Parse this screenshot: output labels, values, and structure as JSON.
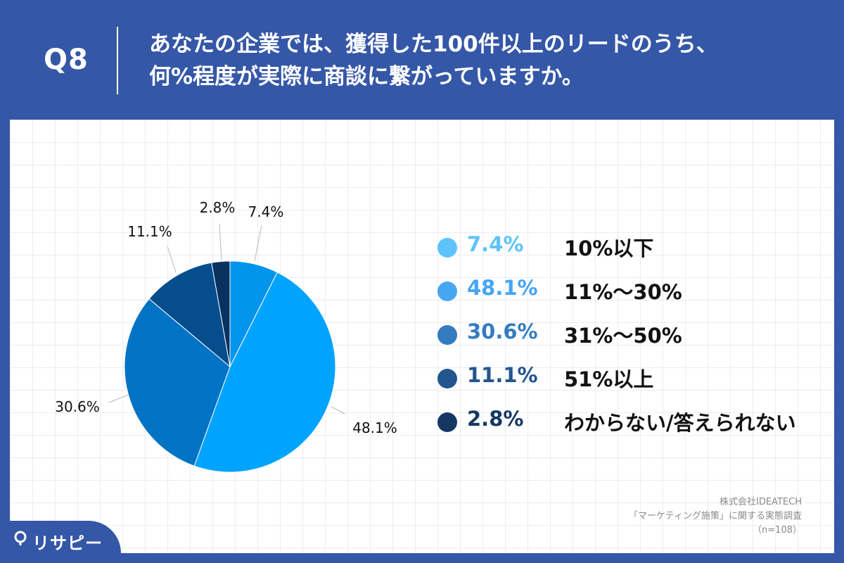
{
  "header": {
    "question_number": "Q8",
    "question_line1": "あなたの企業では、獲得した100件以上のリードのうち、",
    "question_line2": "何%程度が実際に商談に繋がっていますか。"
  },
  "chart_data": {
    "type": "pie",
    "title": "",
    "slices": [
      {
        "label": "10%以下",
        "value": 7.4,
        "value_text": "7.4%",
        "color": "#0094ec"
      },
      {
        "label": "11%〜30%",
        "value": 48.1,
        "value_text": "48.1%",
        "color": "#00a4ff"
      },
      {
        "label": "31%〜50%",
        "value": 30.6,
        "value_text": "30.6%",
        "color": "#0073c4"
      },
      {
        "label": "51%以上",
        "value": 11.1,
        "value_text": "11.1%",
        "color": "#054d8d"
      },
      {
        "label": "わからない/答えられない",
        "value": 2.8,
        "value_text": "2.8%",
        "color": "#08325f"
      }
    ],
    "legend_placement": "right"
  },
  "legend": {
    "items": [
      {
        "value": "7.4%",
        "label": "10%以下",
        "dot_color": "#5ec3fb",
        "text_color": "#5ec3fb"
      },
      {
        "value": "48.1%",
        "label": "11%〜30%",
        "dot_color": "#45a6f2",
        "text_color": "#45a6f2"
      },
      {
        "value": "30.6%",
        "label": "31%〜50%",
        "dot_color": "#357bc0",
        "text_color": "#357bc0"
      },
      {
        "value": "11.1%",
        "label": "51%以上",
        "dot_color": "#23558f",
        "text_color": "#23558f"
      },
      {
        "value": "2.8%",
        "label": "わからない/答えられない",
        "dot_color": "#153863",
        "text_color": "#153863"
      }
    ]
  },
  "source": {
    "company": "株式会社IDEATECH",
    "survey": "「マーケティング施策」に関する実態調査",
    "sample": "（n=108）"
  },
  "logo": {
    "text": "リサピー",
    "icon": "pin-icon"
  },
  "colors": {
    "brand_blue": "#3557a7",
    "background": "#ffffff"
  }
}
